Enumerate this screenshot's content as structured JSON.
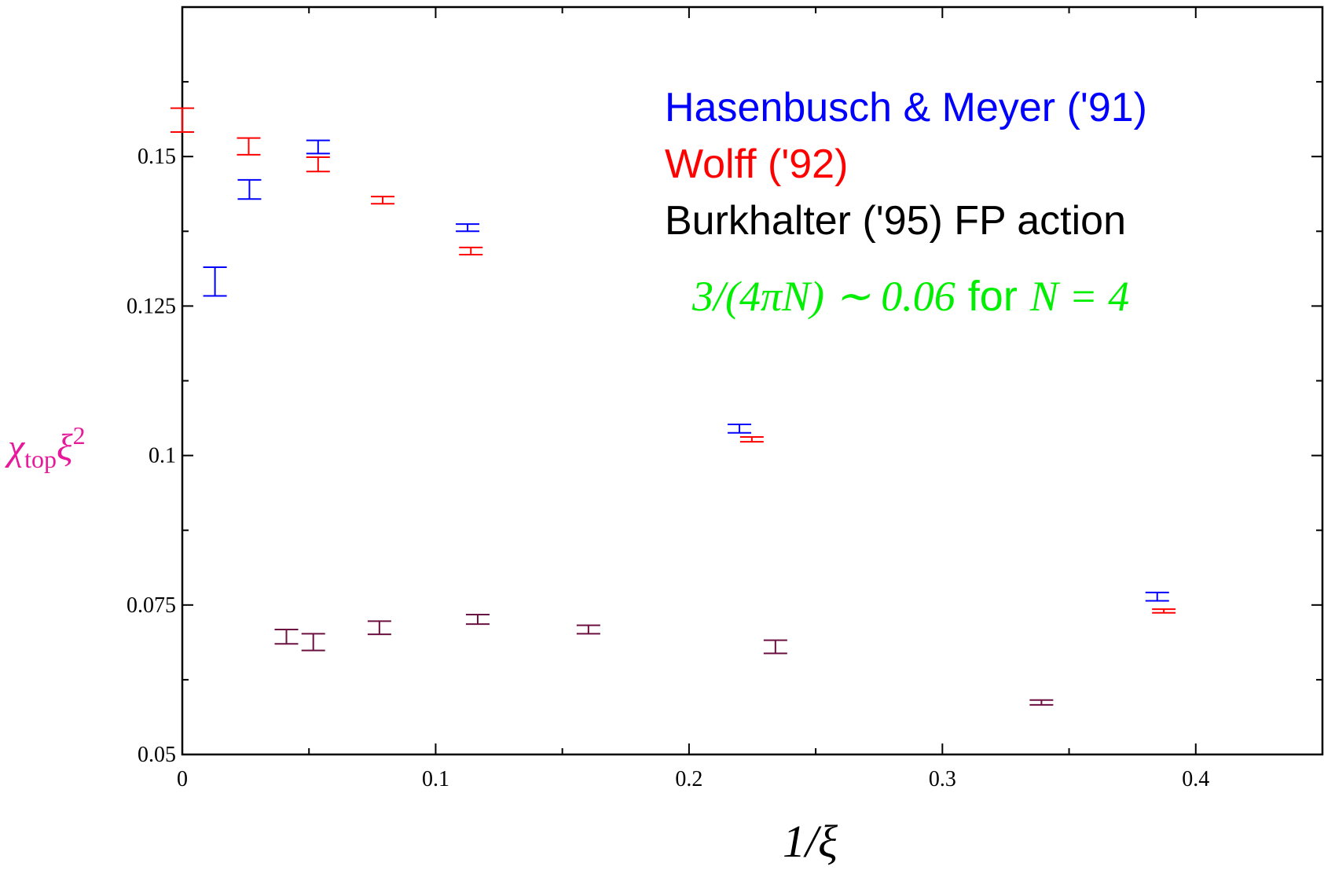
{
  "chart_data": {
    "type": "errorbar",
    "xlabel": "1/ξ",
    "ylabel": {
      "base": "χ",
      "sub": "top",
      "rest": "ξ",
      "sup": "2"
    },
    "xlim": [
      0,
      0.45
    ],
    "ylim": [
      0.05,
      0.175
    ],
    "xticks": [
      0,
      0.1,
      0.2,
      0.3,
      0.4
    ],
    "xminorticks": [
      0.05,
      0.15,
      0.25,
      0.35
    ],
    "yticks": [
      0.05,
      0.075,
      0.1,
      0.125,
      0.15
    ],
    "yminorticks": [
      0.0625,
      0.0875,
      0.1125,
      0.1375,
      0.1625,
      0.175
    ],
    "series": [
      {
        "name": "Hasenbusch & Meyer ('91)",
        "color": "#0000ff",
        "label_color": "#0000ff",
        "x": [
          0.0129,
          0.0265,
          0.0536,
          0.1126,
          0.2199,
          0.3848
        ],
        "values": [
          0.1291,
          0.1445,
          0.1516,
          0.1381,
          0.1045,
          0.0764
        ],
        "errors": [
          0.0024,
          0.0016,
          0.0011,
          0.0006,
          0.0007,
          0.0007
        ]
      },
      {
        "name": "Wolff ('92)",
        "color": "#ff0000",
        "label_color": "#ff0000",
        "x": [
          0,
          0.0262,
          0.0536,
          0.0791,
          0.1139,
          0.2248,
          0.3874
        ],
        "values": [
          0.1561,
          0.1517,
          0.1487,
          0.1427,
          0.1342,
          0.1027,
          0.074
        ],
        "errors": [
          0.002,
          0.0014,
          0.0012,
          0.0006,
          0.0006,
          0.0004,
          0.0003
        ]
      },
      {
        "name": "Burkhalter ('95) FP action",
        "color": "#6b1040",
        "label_color": "#000000",
        "x": [
          0.0411,
          0.0517,
          0.0778,
          0.1166,
          0.1603,
          0.2341,
          0.3391
        ],
        "values": [
          0.0697,
          0.0688,
          0.0712,
          0.0726,
          0.0709,
          0.068,
          0.0587
        ],
        "errors": [
          0.0012,
          0.0014,
          0.0011,
          0.0008,
          0.0007,
          0.0011,
          0.0004
        ]
      }
    ],
    "annotation": {
      "math": "3/(4πN) ∼ 0.06",
      "text": "for",
      "math2": "N = 4",
      "color": "#00ee00"
    }
  }
}
